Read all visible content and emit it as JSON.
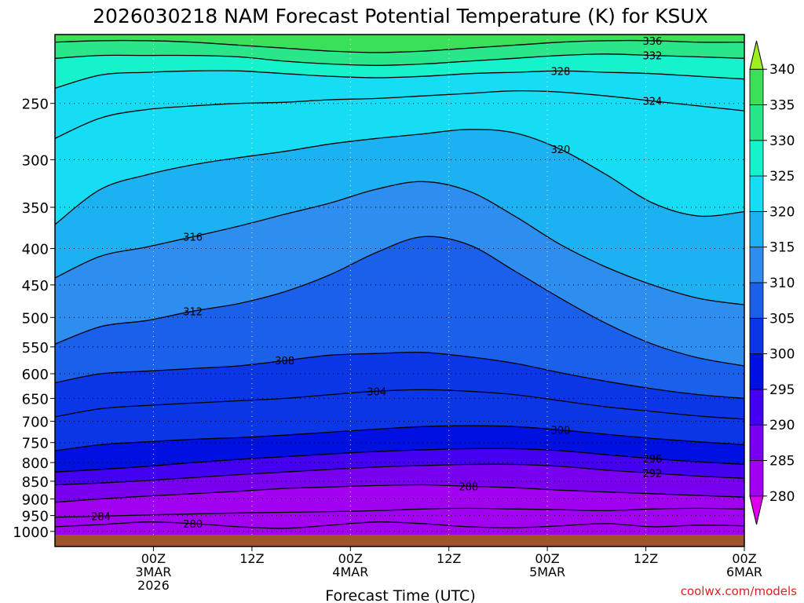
{
  "chart_data": {
    "type": "heatmap",
    "title": "2026030218 NAM Forecast Potential Temperature (K) for KSUX",
    "xlabel": "Forecast Time (UTC)",
    "ylabel": "",
    "credit": "coolwx.com/models",
    "y_axis": {
      "scale": "log-pressure",
      "ylim_hpa": [
        1050,
        200
      ],
      "ticks": [
        "250",
        "300",
        "350",
        "400",
        "450",
        "500",
        "550",
        "600",
        "650",
        "700",
        "750",
        "800",
        "850",
        "900",
        "950",
        "1000"
      ]
    },
    "x_axis": {
      "xlim_hours": [
        -6,
        78
      ],
      "ticks": [
        {
          "hour": 6,
          "lines": [
            "00Z",
            "3MAR",
            "2026"
          ]
        },
        {
          "hour": 18,
          "lines": [
            "12Z",
            "",
            ""
          ]
        },
        {
          "hour": 30,
          "lines": [
            "00Z",
            "4MAR",
            ""
          ]
        },
        {
          "hour": 42,
          "lines": [
            "12Z",
            "",
            ""
          ]
        },
        {
          "hour": 54,
          "lines": [
            "00Z",
            "5MAR",
            ""
          ]
        },
        {
          "hour": 66,
          "lines": [
            "12Z",
            "",
            ""
          ]
        },
        {
          "hour": 78,
          "lines": [
            "00Z",
            "6MAR",
            ""
          ]
        }
      ]
    },
    "colorbar": {
      "levels": [
        "280",
        "285",
        "290",
        "295",
        "300",
        "305",
        "310",
        "315",
        "320",
        "325",
        "330",
        "335",
        "340"
      ],
      "colors": [
        "#dd00ee",
        "#a200f0",
        "#7a00f0",
        "#4400f0",
        "#0010e0",
        "#0a36e6",
        "#1a60ea",
        "#2e8ef0",
        "#1cb2f2",
        "#16dcf4",
        "#16f2cc",
        "#2ae68a",
        "#3ae05a",
        "#9ef01c",
        "#d4f000"
      ],
      "ylim_k": [
        276,
        344
      ]
    },
    "contour_interval_k": 4,
    "contours": [
      {
        "value": 280,
        "label": "280",
        "pressures": [
          985,
          978,
          970,
          975,
          985,
          990,
          980,
          970,
          975,
          985,
          988,
          982,
          975,
          985,
          980,
          982
        ],
        "label_at": 1
      },
      {
        "value": 284,
        "label": "284",
        "pressures": [
          955,
          952,
          948,
          945,
          942,
          940,
          938,
          935,
          930,
          928,
          930,
          932,
          935,
          930,
          928,
          930
        ],
        "label_at": 0
      },
      {
        "value": 288,
        "label": "288",
        "pressures": [
          910,
          900,
          892,
          885,
          878,
          870,
          866,
          862,
          860,
          864,
          868,
          875,
          880,
          885,
          890,
          895
        ],
        "label_at": 4
      },
      {
        "value": 292,
        "label": "292",
        "pressures": [
          860,
          855,
          848,
          840,
          832,
          825,
          818,
          812,
          808,
          805,
          805,
          810,
          820,
          828,
          836,
          842
        ],
        "label_at": 6
      },
      {
        "value": 296,
        "label": "296",
        "pressures": [
          825,
          818,
          810,
          800,
          792,
          785,
          778,
          772,
          768,
          765,
          765,
          770,
          780,
          790,
          798,
          805
        ],
        "label_at": 6
      },
      {
        "value": 300,
        "label": "300",
        "pressures": [
          770,
          755,
          748,
          742,
          738,
          732,
          725,
          718,
          712,
          710,
          712,
          720,
          730,
          740,
          748,
          755
        ],
        "label_at": 5
      },
      {
        "value": 304,
        "label": "304",
        "pressures": [
          690,
          672,
          665,
          660,
          655,
          650,
          642,
          635,
          632,
          635,
          642,
          655,
          668,
          678,
          688,
          695
        ],
        "label_at": 3
      },
      {
        "value": 308,
        "label": "308",
        "pressures": [
          618,
          600,
          595,
          590,
          585,
          575,
          565,
          562,
          560,
          568,
          580,
          598,
          615,
          630,
          642,
          650
        ],
        "label_at": 2
      },
      {
        "value": 312,
        "label": "312",
        "pressures": [
          545,
          515,
          505,
          490,
          478,
          460,
          435,
          405,
          385,
          395,
          430,
          470,
          510,
          545,
          570,
          585
        ],
        "label_at": 1
      },
      {
        "value": 316,
        "label": "316",
        "pressures": [
          440,
          410,
          398,
          385,
          372,
          358,
          345,
          330,
          322,
          332,
          360,
          395,
          425,
          450,
          470,
          480
        ],
        "label_at": 1
      },
      {
        "value": 320,
        "label": "320",
        "pressures": [
          370,
          330,
          315,
          305,
          298,
          292,
          285,
          280,
          276,
          272,
          275,
          290,
          315,
          345,
          360,
          355
        ],
        "label_at": 5
      },
      {
        "value": 324,
        "label": "324",
        "pressures": [
          280,
          262,
          255,
          252,
          250,
          249,
          247,
          246,
          244,
          242,
          240,
          241,
          244,
          248,
          252,
          256
        ],
        "label_at": 6
      },
      {
        "value": 328,
        "label": "328",
        "pressures": [
          238,
          228,
          226,
          225,
          225,
          227,
          229,
          230,
          229,
          227,
          226,
          225,
          226,
          227,
          229,
          231
        ],
        "label_at": 5
      },
      {
        "value": 332,
        "label": "332",
        "pressures": [
          216,
          214,
          214,
          214,
          215,
          218,
          220,
          221,
          220,
          218,
          216,
          214,
          213,
          214,
          215,
          216
        ],
        "label_at": 6
      },
      {
        "value": 336,
        "label": "336",
        "pressures": [
          205,
          204,
          204,
          205,
          207,
          209,
          211,
          212,
          211,
          209,
          207,
          205,
          204,
          204,
          205,
          205
        ],
        "label_at": 6
      }
    ],
    "contour_hours": [
      -6,
      -0.4,
      5.2,
      10.8,
      16.4,
      22,
      27.6,
      33.2,
      38.8,
      44.4,
      50,
      55.6,
      61.2,
      66.8,
      72.4,
      78
    ],
    "surface": {
      "label": "terrain below surface",
      "color": "#a0522d",
      "pressure_hpa": 1011
    }
  }
}
